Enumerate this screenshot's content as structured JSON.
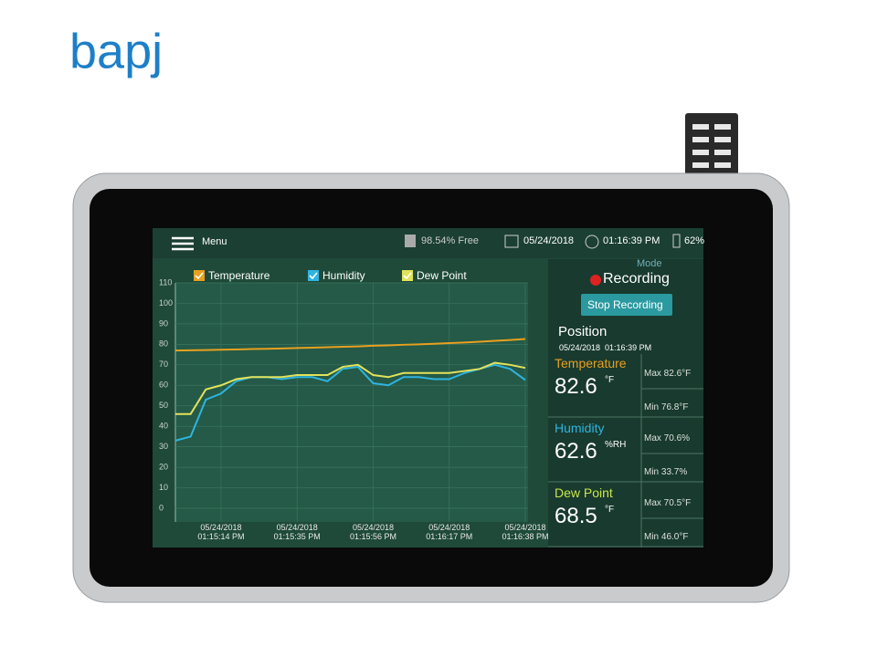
{
  "logo": "bapj",
  "status_bar": {
    "menu": "Menu",
    "storage": "98.54% Free",
    "date": "05/24/2018",
    "time": "01:16:39 PM",
    "battery": "62%"
  },
  "chart_data": {
    "type": "line",
    "categories": [
      null,
      null,
      null,
      "05/24/2018 01:15:14 PM",
      null,
      null,
      null,
      null,
      "05/24/2018 01:15:35 PM",
      null,
      null,
      null,
      null,
      "05/24/2018 01:15:56 PM",
      null,
      null,
      null,
      null,
      "05/24/2018 01:16:17 PM",
      null,
      null,
      null,
      null,
      "05/24/2018 01:16:38 PM"
    ],
    "series": [
      {
        "name": "Temperature",
        "color": "#e8a020",
        "values": [
          77.0,
          77.1,
          77.2,
          77.4,
          77.5,
          77.7,
          77.8,
          78.0,
          78.2,
          78.4,
          78.6,
          78.8,
          79.0,
          79.3,
          79.5,
          79.8,
          80.0,
          80.3,
          80.6,
          80.9,
          81.3,
          81.7,
          82.1,
          82.6
        ]
      },
      {
        "name": "Humidity",
        "color": "#2fb4e0",
        "values": [
          33,
          35,
          53,
          56,
          62,
          64,
          64,
          63,
          64,
          64,
          62,
          68,
          69,
          61,
          60,
          64,
          64,
          63,
          63,
          66,
          68,
          70,
          68,
          62.6
        ]
      },
      {
        "name": "Dew Point",
        "color": "#e2e25a",
        "values": [
          46,
          46,
          58,
          60,
          63,
          64,
          64,
          64,
          65,
          65,
          65,
          69,
          70,
          65,
          64,
          66,
          66,
          66,
          66,
          67,
          68,
          71,
          70,
          68.5
        ]
      }
    ],
    "ylim": [
      0,
      110
    ],
    "yticks": [
      0,
      10,
      20,
      30,
      40,
      50,
      60,
      70,
      80,
      90,
      100,
      110
    ],
    "grid": true
  },
  "side_panel": {
    "mode": "Mode",
    "recording": "Recording",
    "button": "Stop Recording",
    "position": "Position",
    "timestamp": "05/24/2018  01:16:39 PM",
    "readings": [
      {
        "name": "Temperature",
        "value": "82.6",
        "unit": "°F",
        "max": "Max 82.6°F",
        "min": "Min 76.8°F",
        "color": "#e8a020"
      },
      {
        "name": "Humidity",
        "value": "62.6",
        "unit": "%RH",
        "max": "Max 70.6%",
        "min": "Min 33.7%",
        "color": "#2fb4e0"
      },
      {
        "name": "Dew Point",
        "value": "68.5",
        "unit": "°F",
        "max": "Max 70.5°F",
        "min": "Min 46.0°F",
        "color": "#c9e64a"
      }
    ]
  }
}
